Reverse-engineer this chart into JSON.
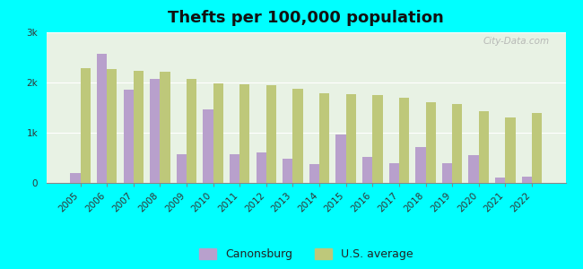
{
  "title": "Thefts per 100,000 population",
  "years": [
    2005,
    2006,
    2007,
    2008,
    2009,
    2010,
    2011,
    2012,
    2013,
    2014,
    2015,
    2016,
    2017,
    2018,
    2019,
    2020,
    2021,
    2022
  ],
  "canonsburg": [
    200,
    2580,
    1850,
    2080,
    570,
    1460,
    570,
    610,
    490,
    380,
    960,
    520,
    390,
    720,
    400,
    550,
    100,
    130
  ],
  "us_average": [
    2280,
    2260,
    2240,
    2220,
    2080,
    1980,
    1970,
    1940,
    1870,
    1790,
    1770,
    1750,
    1700,
    1610,
    1570,
    1430,
    1310,
    1400
  ],
  "canonsburg_color": "#b8a0cc",
  "us_average_color": "#bec87a",
  "background_color": "#00ffff",
  "plot_bg_color": "#e8f2e4",
  "ylim": [
    0,
    3000
  ],
  "yticks": [
    0,
    1000,
    2000,
    3000
  ],
  "ytick_labels": [
    "0",
    "1k",
    "2k",
    "3k"
  ],
  "bar_width": 0.38,
  "legend_labels": [
    "Canonsburg",
    "U.S. average"
  ],
  "watermark": "City-Data.com",
  "title_fontsize": 13,
  "tick_fontsize": 7.5,
  "legend_fontsize": 9
}
